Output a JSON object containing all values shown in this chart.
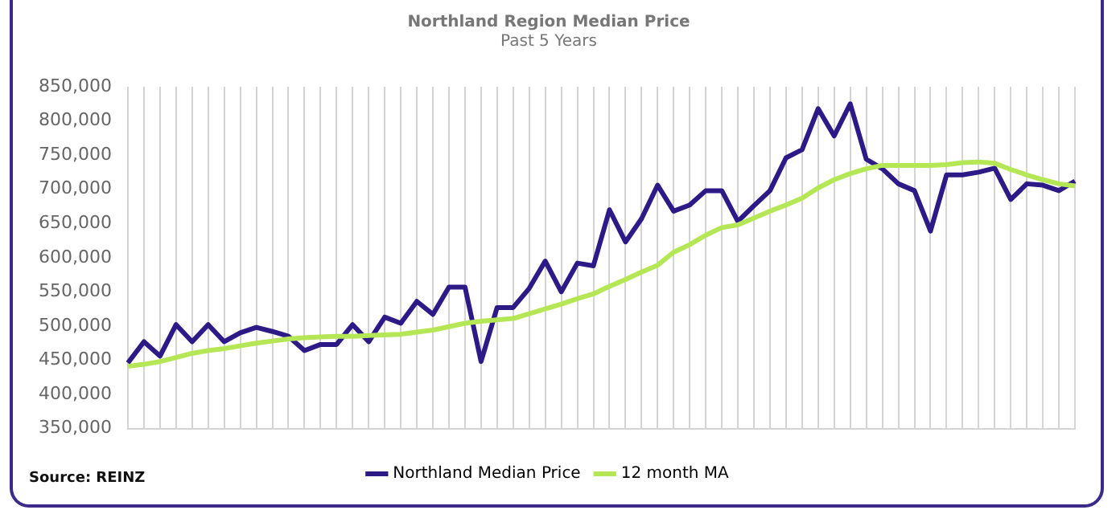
{
  "chart_data": {
    "type": "line",
    "title": "Northland Region Median Price",
    "subtitle": "Past 5 Years",
    "categories": [
      null,
      null,
      null,
      null,
      null,
      null,
      null,
      null,
      null,
      null,
      null,
      null,
      null,
      null,
      null,
      null,
      null,
      null,
      null,
      null,
      null,
      null,
      null,
      null,
      null,
      null,
      null,
      null,
      null,
      null,
      null,
      null,
      null,
      null,
      null,
      null,
      null,
      null,
      null,
      null,
      null,
      null,
      null,
      null,
      null,
      null,
      null,
      null,
      null,
      null,
      null,
      null,
      null,
      null,
      null,
      null,
      null,
      null,
      null,
      null
    ],
    "series": [
      {
        "name": "Northland Median Price",
        "color": "#2e1a87",
        "values": [
          446000,
          477000,
          456000,
          502000,
          477000,
          502000,
          477000,
          490000,
          498000,
          492000,
          485000,
          464000,
          473000,
          473000,
          502000,
          477000,
          513000,
          504000,
          536000,
          517000,
          557000,
          557000,
          448000,
          527000,
          527000,
          555000,
          595000,
          550000,
          592000,
          588000,
          670000,
          623000,
          657000,
          706000,
          668000,
          677000,
          698000,
          698000,
          653000,
          676000,
          698000,
          746000,
          758000,
          818000,
          778000,
          825000,
          744000,
          730000,
          708000,
          698000,
          639000,
          721000,
          721000,
          725000,
          731000,
          685000,
          708000,
          706000,
          698000,
          712000
        ]
      },
      {
        "name": "12 month MA",
        "color": "#b5e655",
        "values": [
          441000,
          444000,
          448000,
          454000,
          460000,
          464000,
          467000,
          471000,
          475000,
          478000,
          481000,
          483000,
          484000,
          485000,
          485000,
          486000,
          487000,
          488000,
          491000,
          494000,
          499000,
          504000,
          507000,
          509000,
          511000,
          518000,
          525000,
          532000,
          540000,
          547000,
          558000,
          568000,
          579000,
          589000,
          608000,
          619000,
          633000,
          644000,
          648000,
          658000,
          668000,
          677000,
          687000,
          702000,
          714000,
          723000,
          730000,
          735000,
          735000,
          735000,
          735000,
          736000,
          739000,
          740000,
          738000,
          729000,
          721000,
          714000,
          708000,
          705000
        ]
      }
    ],
    "ylim": [
      350000,
      850000
    ],
    "yticks": [
      {
        "value": 350000,
        "label": "350,000"
      },
      {
        "value": 400000,
        "label": "400,000"
      },
      {
        "value": 450000,
        "label": "450,000"
      },
      {
        "value": 500000,
        "label": "500,000"
      },
      {
        "value": 550000,
        "label": "550,000"
      },
      {
        "value": 600000,
        "label": "600,000"
      },
      {
        "value": 650000,
        "label": "650,000"
      },
      {
        "value": 700000,
        "label": "700,000"
      },
      {
        "value": 750000,
        "label": "750,000"
      },
      {
        "value": 800000,
        "label": "800,000"
      },
      {
        "value": 850000,
        "label": "850,000"
      }
    ],
    "grid": "x",
    "legend": "bottom",
    "marker": "none",
    "line_style": "solid",
    "annotations": [
      "Source: REINZ"
    ]
  }
}
